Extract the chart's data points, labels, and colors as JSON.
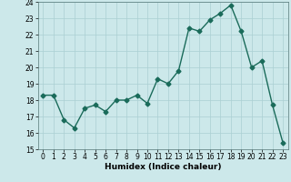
{
  "x": [
    0,
    1,
    2,
    3,
    4,
    5,
    6,
    7,
    8,
    9,
    10,
    11,
    12,
    13,
    14,
    15,
    16,
    17,
    18,
    19,
    20,
    21,
    22,
    23
  ],
  "y": [
    18.3,
    18.3,
    16.8,
    16.3,
    17.5,
    17.7,
    17.3,
    18.0,
    18.0,
    18.3,
    17.8,
    19.3,
    19.0,
    19.8,
    22.4,
    22.2,
    22.9,
    23.3,
    23.8,
    22.2,
    20.0,
    20.4,
    17.7,
    15.4
  ],
  "line_color": "#1a6b5a",
  "marker": "D",
  "marker_size": 2.5,
  "linewidth": 1.0,
  "xlabel": "Humidex (Indice chaleur)",
  "xlim": [
    -0.5,
    23.5
  ],
  "ylim": [
    15,
    24
  ],
  "yticks": [
    15,
    16,
    17,
    18,
    19,
    20,
    21,
    22,
    23,
    24
  ],
  "xticks": [
    0,
    1,
    2,
    3,
    4,
    5,
    6,
    7,
    8,
    9,
    10,
    11,
    12,
    13,
    14,
    15,
    16,
    17,
    18,
    19,
    20,
    21,
    22,
    23
  ],
  "bg_color": "#cce8ea",
  "grid_color": "#aacfd2",
  "tick_fontsize": 5.5,
  "xlabel_fontsize": 6.5
}
